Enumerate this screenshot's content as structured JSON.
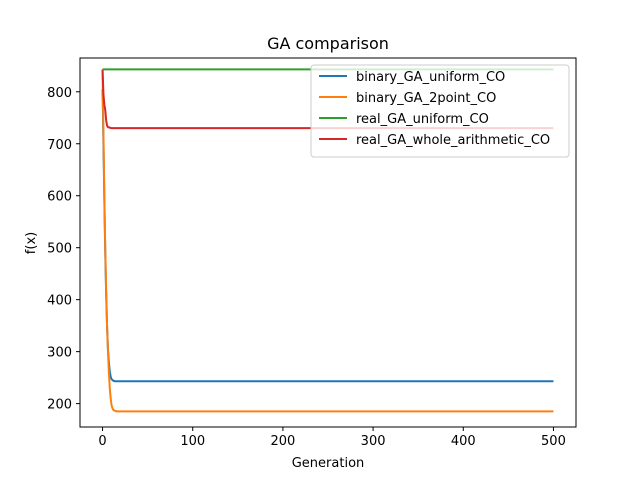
{
  "chart_data": {
    "type": "line",
    "title": "GA comparison",
    "xlabel": "Generation",
    "ylabel": "f(x)",
    "xlim": [
      -25,
      525
    ],
    "ylim": [
      155,
      865
    ],
    "xticks": [
      0,
      100,
      200,
      300,
      400,
      500
    ],
    "yticks": [
      200,
      300,
      400,
      500,
      600,
      700,
      800
    ],
    "grid": false,
    "legend_position": "top-right",
    "series": [
      {
        "name": "binary_GA_uniform_CO",
        "color": "#1f77b4",
        "x": [
          0,
          1,
          2,
          3,
          4,
          5,
          6,
          7,
          8,
          9,
          10,
          12,
          14,
          16,
          20,
          30,
          50,
          100,
          200,
          300,
          400,
          500
        ],
        "y": [
          805,
          700,
          590,
          490,
          410,
          350,
          305,
          280,
          262,
          252,
          247,
          244,
          243,
          243,
          243,
          243,
          243,
          243,
          243,
          243,
          243,
          243
        ]
      },
      {
        "name": "binary_GA_2point_CO",
        "color": "#ff7f0e",
        "x": [
          0,
          1,
          2,
          3,
          4,
          5,
          6,
          7,
          8,
          9,
          10,
          11,
          12,
          14,
          16,
          20,
          30,
          50,
          100,
          200,
          300,
          400,
          500
        ],
        "y": [
          840,
          720,
          600,
          500,
          420,
          350,
          300,
          260,
          230,
          210,
          197,
          191,
          188,
          186,
          185,
          185,
          185,
          185,
          185,
          185,
          185,
          185,
          185
        ]
      },
      {
        "name": "real_GA_uniform_CO",
        "color": "#2ca02c",
        "x": [
          0,
          1,
          2,
          5,
          10,
          50,
          100,
          200,
          300,
          400,
          500
        ],
        "y": [
          843,
          843,
          843,
          843,
          843,
          843,
          843,
          843,
          843,
          843,
          843
        ]
      },
      {
        "name": "real_GA_whole_arithmetic_CO",
        "color": "#d62728",
        "x": [
          0,
          1,
          2,
          3,
          4,
          5,
          6,
          8,
          10,
          15,
          20,
          50,
          100,
          200,
          300,
          400,
          500
        ],
        "y": [
          843,
          795,
          775,
          765,
          745,
          735,
          732,
          731,
          730,
          730,
          730,
          730,
          730,
          730,
          730,
          730,
          730
        ]
      }
    ]
  }
}
